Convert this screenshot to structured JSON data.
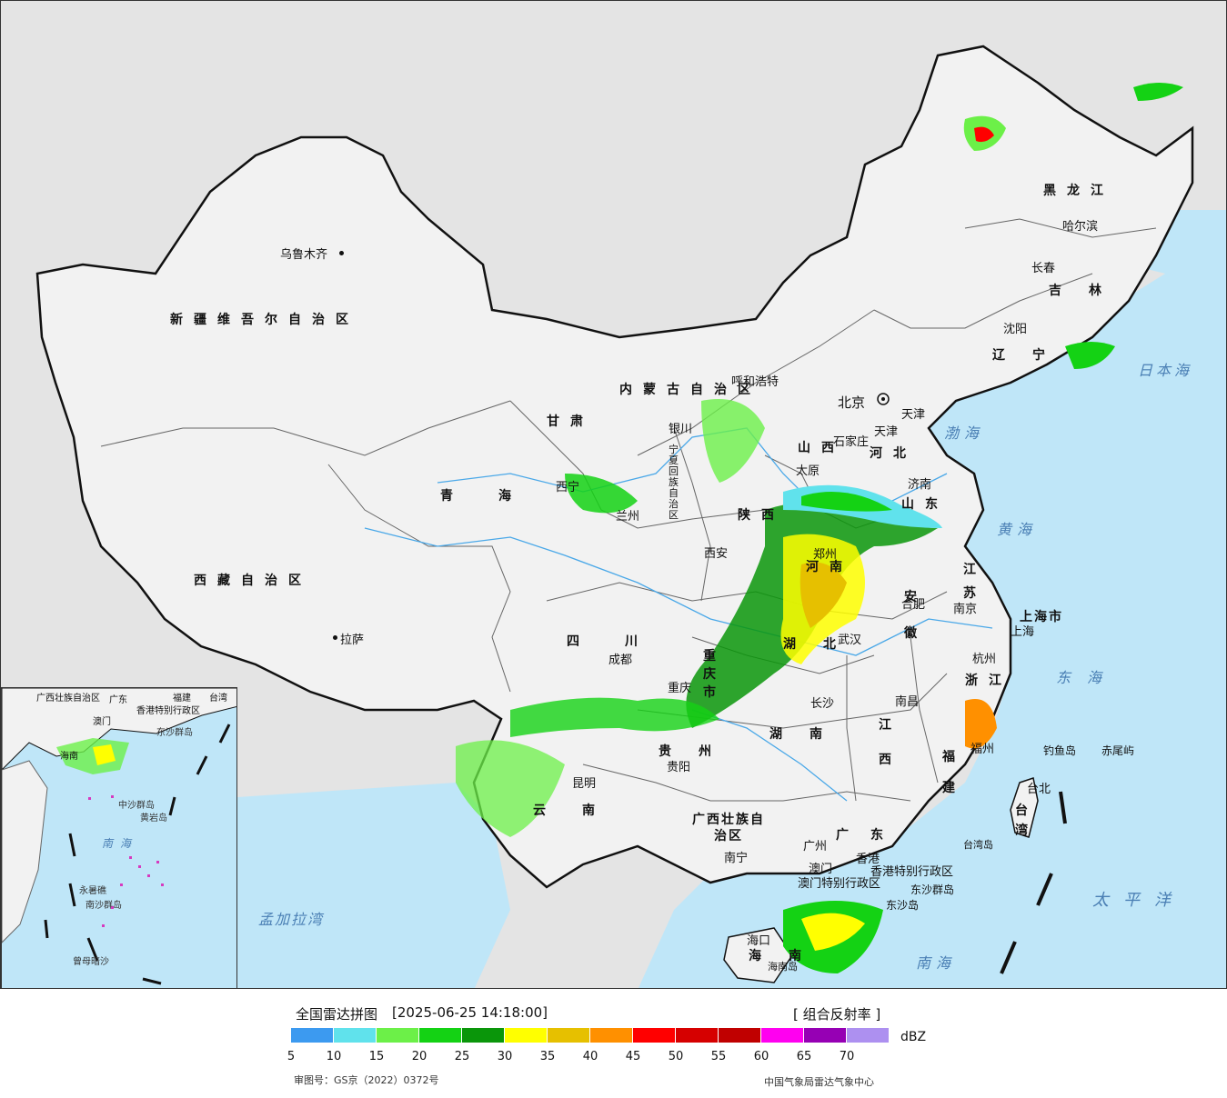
{
  "map": {
    "provinces": [
      {
        "id": "xinjiang",
        "name": "新疆维吾尔自治区"
      },
      {
        "id": "xizang",
        "name": "西藏自治区"
      },
      {
        "id": "qinghai",
        "name": "青海"
      },
      {
        "id": "gansu",
        "name": "甘肃"
      },
      {
        "id": "neimenggu",
        "name": "内蒙古自治区"
      },
      {
        "id": "heilongjiang",
        "name": "黑龙江"
      },
      {
        "id": "jilin",
        "name": "吉林"
      },
      {
        "id": "liaoning",
        "name": "辽宁"
      },
      {
        "id": "hebei",
        "name": "河北"
      },
      {
        "id": "shanxi",
        "name": "山西"
      },
      {
        "id": "shandong",
        "name": "山东"
      },
      {
        "id": "henan",
        "name": "河南"
      },
      {
        "id": "shaanxi",
        "name": "陕西"
      },
      {
        "id": "ningxia",
        "name": "宁夏回族自治区"
      },
      {
        "id": "sichuan",
        "name": "四川"
      },
      {
        "id": "chongqing",
        "name": "重庆市"
      },
      {
        "id": "hubei",
        "name": "湖北"
      },
      {
        "id": "hunan",
        "name": "湖南"
      },
      {
        "id": "jiangxi",
        "name": "江西"
      },
      {
        "id": "anhui",
        "name": "安徽"
      },
      {
        "id": "jiangsu",
        "name": "江苏"
      },
      {
        "id": "zhejiang",
        "name": "浙江"
      },
      {
        "id": "fujian",
        "name": "福建"
      },
      {
        "id": "guizhou",
        "name": "贵州"
      },
      {
        "id": "yunnan",
        "name": "云南"
      },
      {
        "id": "guangxi",
        "name": "广西壮族自治区"
      },
      {
        "id": "guangdong",
        "name": "广东"
      },
      {
        "id": "hainan",
        "name": "海南"
      },
      {
        "id": "taiwan",
        "name": "台湾"
      },
      {
        "id": "shanghai",
        "name": "上海市"
      },
      {
        "id": "tianjin",
        "name": "天津"
      },
      {
        "id": "hongkong",
        "name": "香港特别行政区"
      },
      {
        "id": "macao",
        "name": "澳门特别行政区"
      }
    ],
    "cities": [
      {
        "id": "urumqi",
        "name": "乌鲁木齐"
      },
      {
        "id": "lhasa",
        "name": "拉萨"
      },
      {
        "id": "xining",
        "name": "西宁"
      },
      {
        "id": "lanzhou",
        "name": "兰州"
      },
      {
        "id": "yinchuan",
        "name": "银川"
      },
      {
        "id": "hohhot",
        "name": "呼和浩特"
      },
      {
        "id": "beijing",
        "name": "北京"
      },
      {
        "id": "tianjin",
        "name": "天津"
      },
      {
        "id": "shijiazhuang",
        "name": "石家庄"
      },
      {
        "id": "taiyuan",
        "name": "太原"
      },
      {
        "id": "jinan",
        "name": "济南"
      },
      {
        "id": "zhengzhou",
        "name": "郑州"
      },
      {
        "id": "xian",
        "name": "西安"
      },
      {
        "id": "chengdu",
        "name": "成都"
      },
      {
        "id": "chongqing",
        "name": "重庆"
      },
      {
        "id": "wuhan",
        "name": "武汉"
      },
      {
        "id": "hefei",
        "name": "合肥"
      },
      {
        "id": "nanjing",
        "name": "南京"
      },
      {
        "id": "shanghai",
        "name": "上海"
      },
      {
        "id": "hangzhou",
        "name": "杭州"
      },
      {
        "id": "nanchang",
        "name": "南昌"
      },
      {
        "id": "changsha",
        "name": "长沙"
      },
      {
        "id": "guiyang",
        "name": "贵阳"
      },
      {
        "id": "kunming",
        "name": "昆明"
      },
      {
        "id": "nanning",
        "name": "南宁"
      },
      {
        "id": "guangzhou",
        "name": "广州"
      },
      {
        "id": "macau",
        "name": "澳门"
      },
      {
        "id": "hongkong",
        "name": "香港"
      },
      {
        "id": "haikou",
        "name": "海口"
      },
      {
        "id": "fuzhou",
        "name": "福州"
      },
      {
        "id": "taibei",
        "name": "台北"
      },
      {
        "id": "shenyang",
        "name": "沈阳"
      },
      {
        "id": "changchun",
        "name": "长春"
      },
      {
        "id": "harbin",
        "name": "哈尔滨"
      }
    ],
    "seas": [
      {
        "id": "bohai",
        "name": "渤海"
      },
      {
        "id": "huanghai",
        "name": "黄海"
      },
      {
        "id": "donghai",
        "name": "东海"
      },
      {
        "id": "nanhai",
        "name": "南海"
      },
      {
        "id": "taipingyang",
        "name": "太平洋"
      },
      {
        "id": "ribenhai",
        "name": "日本海"
      },
      {
        "id": "mengjialawan",
        "name": "孟加拉湾"
      }
    ],
    "islands": [
      {
        "id": "diaoyu",
        "name": "钓鱼岛"
      },
      {
        "id": "chiwei",
        "name": "赤尾屿"
      },
      {
        "id": "dongsha",
        "name": "东沙群岛"
      },
      {
        "id": "dongsha2",
        "name": "东沙岛"
      },
      {
        "id": "hainan_south",
        "name": "海南岛"
      },
      {
        "id": "taiwan_island",
        "name": "台湾岛"
      }
    ],
    "inset": {
      "labels": [
        "广西壮族自治区",
        "广东",
        "福建",
        "台湾",
        "香港特别行政区",
        "澳门",
        "海南",
        "东沙群岛",
        "中沙群岛",
        "黄岩岛",
        "南海",
        "永暑礁",
        "南沙群岛",
        "曾母暗沙"
      ]
    },
    "capital_marker": "北京市"
  },
  "legend": {
    "title": "全国雷达拼图",
    "timestamp": "[2025-06-25 14:18:00]",
    "product": "[ 组合反射率 ]",
    "unit": "dBZ",
    "ticks": [
      "5",
      "10",
      "15",
      "20",
      "25",
      "30",
      "35",
      "40",
      "45",
      "50",
      "55",
      "60",
      "65",
      "70"
    ],
    "colors": [
      "#3c9af0",
      "#60e2ec",
      "#6cf048",
      "#14d214",
      "#0a960a",
      "#ffff00",
      "#e6c000",
      "#ff9000",
      "#ff0000",
      "#d60000",
      "#c00000",
      "#ff00f0",
      "#9600b4",
      "#ad90f0"
    ],
    "approval": "审图号：GS京（2022）0372号",
    "source": "中国气象局雷达气象中心"
  }
}
